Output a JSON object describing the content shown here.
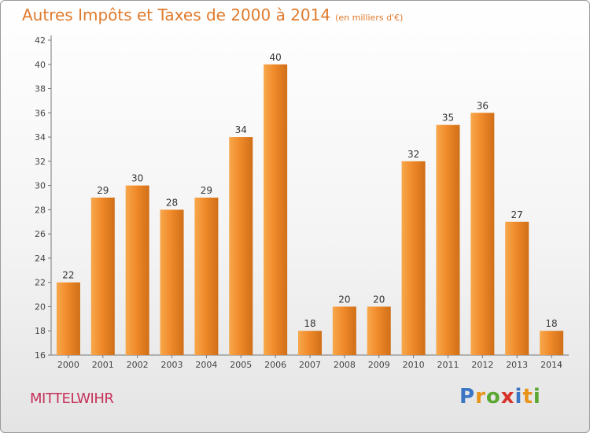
{
  "title": "Autres Impôts et Taxes de 2000 à 2014",
  "subtitle": "(en milliers d'€)",
  "place": "MITTELWIHR",
  "brand": {
    "letters": [
      "P",
      "r",
      "o",
      "x",
      "i",
      "t",
      "i"
    ],
    "colors": [
      "#3a76c4",
      "#e8941a",
      "#5aa832",
      "#d8322a",
      "#3a76c4",
      "#e8941a",
      "#5aa832"
    ]
  },
  "chart_data": {
    "type": "bar",
    "title": "Autres Impôts et Taxes de 2000 à 2014",
    "subtitle": "(en milliers d'€)",
    "xlabel": "",
    "ylabel": "",
    "categories": [
      "2000",
      "2001",
      "2002",
      "2003",
      "2004",
      "2005",
      "2006",
      "2007",
      "2008",
      "2009",
      "2010",
      "2011",
      "2012",
      "2013",
      "2014"
    ],
    "values": [
      22,
      29,
      30,
      28,
      29,
      34,
      40,
      18,
      20,
      20,
      32,
      35,
      36,
      27,
      18
    ],
    "ylim": [
      16,
      42
    ],
    "yticks": [
      16,
      18,
      20,
      22,
      24,
      26,
      28,
      30,
      32,
      34,
      36,
      38,
      40,
      42
    ],
    "grid": false,
    "bar_color": "#f08a2a",
    "bar_color_light": "#f7a84c",
    "bar_color_dark": "#d06f18"
  }
}
